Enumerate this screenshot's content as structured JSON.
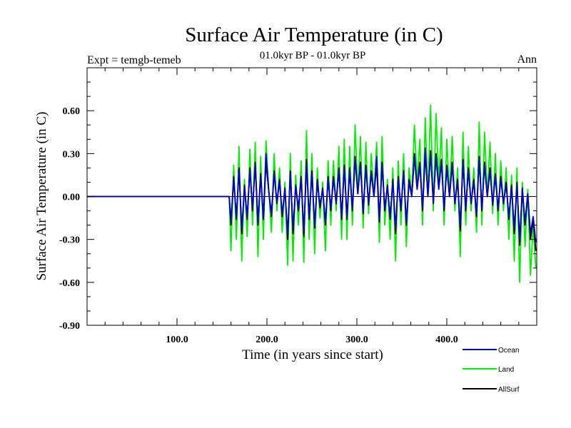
{
  "chart_data": {
    "type": "line",
    "title": "Surface Air Temperature (in C)",
    "subtitle": "01.0kyr BP - 01.0kyr BP",
    "left_label": "Expt = temgb-temeb",
    "right_label": "Ann",
    "xlabel": "Time (in years since start)",
    "ylabel": "Surface Air Temperature (in C)",
    "xlim": [
      0,
      500
    ],
    "ylim": [
      -0.9,
      0.9
    ],
    "xticks": [
      100,
      200,
      300,
      400
    ],
    "xtick_labels": [
      "100.0",
      "200.0",
      "300.0",
      "400.0"
    ],
    "yticks": [
      -0.9,
      -0.6,
      -0.3,
      0.0,
      0.3,
      0.6
    ],
    "ytick_labels": [
      "-0.90",
      "-0.60",
      "-0.30",
      "0.00",
      "0.30",
      "0.60"
    ],
    "zero_line": true,
    "legend_position": "bottom-right",
    "series": [
      {
        "name": "Land",
        "color": "#00ee00",
        "x": [
          0,
          158,
          160,
          163,
          166,
          169,
          172,
          175,
          178,
          181,
          184,
          187,
          190,
          193,
          196,
          199,
          202,
          205,
          208,
          211,
          214,
          217,
          220,
          223,
          226,
          229,
          232,
          235,
          238,
          241,
          244,
          247,
          250,
          253,
          256,
          259,
          262,
          265,
          268,
          271,
          274,
          277,
          280,
          283,
          286,
          289,
          292,
          295,
          298,
          301,
          304,
          307,
          310,
          313,
          316,
          319,
          322,
          325,
          328,
          331,
          334,
          337,
          340,
          343,
          346,
          349,
          352,
          355,
          358,
          361,
          364,
          367,
          370,
          373,
          376,
          379,
          382,
          385,
          388,
          391,
          394,
          397,
          400,
          403,
          406,
          409,
          412,
          415,
          418,
          421,
          424,
          427,
          430,
          433,
          436,
          439,
          442,
          445,
          448,
          451,
          454,
          457,
          460,
          463,
          466,
          469,
          472,
          475,
          478,
          481,
          484,
          487,
          490,
          493,
          496,
          499
        ],
        "values": [
          0,
          0,
          -0.38,
          0.22,
          -0.3,
          0.35,
          -0.45,
          0.12,
          -0.28,
          0.33,
          -0.2,
          0.38,
          -0.42,
          0.28,
          -0.3,
          0.39,
          0.05,
          -0.25,
          0.3,
          -0.1,
          0.2,
          -0.25,
          0.1,
          -0.48,
          0.3,
          -0.45,
          0.15,
          -0.2,
          0.25,
          -0.46,
          0.46,
          -0.3,
          0.3,
          -0.4,
          0.2,
          -0.15,
          0.1,
          -0.38,
          0.25,
          -0.2,
          0.25,
          -0.1,
          0.35,
          -0.3,
          0.4,
          -0.3,
          0.35,
          -0.2,
          0.5,
          0.02,
          0.42,
          -0.22,
          0.38,
          -0.12,
          0.3,
          0.0,
          0.38,
          -0.32,
          0.42,
          -0.2,
          0.12,
          -0.3,
          0.2,
          -0.45,
          0.25,
          -0.2,
          0.3,
          -0.35,
          0.2,
          0.0,
          0.5,
          0.1,
          0.4,
          -0.2,
          0.55,
          0.0,
          0.64,
          -0.1,
          0.58,
          0.1,
          0.48,
          -0.2,
          0.4,
          0.0,
          0.42,
          -0.1,
          0.2,
          -0.42,
          0.45,
          -0.2,
          0.35,
          -0.1,
          0.2,
          -0.25,
          0.52,
          -0.2,
          0.45,
          0.0,
          0.38,
          -0.12,
          0.3,
          -0.2,
          0.25,
          -0.1,
          0.2,
          -0.3,
          0.15,
          -0.45,
          0.2,
          -0.6,
          0.1,
          -0.35,
          0.05,
          -0.55,
          -0.2,
          -0.5
        ]
      },
      {
        "name": "AllSurf",
        "color": "#000000",
        "x": [
          0,
          158,
          160,
          163,
          166,
          169,
          172,
          175,
          178,
          181,
          184,
          187,
          190,
          193,
          196,
          199,
          202,
          205,
          208,
          211,
          214,
          217,
          220,
          223,
          226,
          229,
          232,
          235,
          238,
          241,
          244,
          247,
          250,
          253,
          256,
          259,
          262,
          265,
          268,
          271,
          274,
          277,
          280,
          283,
          286,
          289,
          292,
          295,
          298,
          301,
          304,
          307,
          310,
          313,
          316,
          319,
          322,
          325,
          328,
          331,
          334,
          337,
          340,
          343,
          346,
          349,
          352,
          355,
          358,
          361,
          364,
          367,
          370,
          373,
          376,
          379,
          382,
          385,
          388,
          391,
          394,
          397,
          400,
          403,
          406,
          409,
          412,
          415,
          418,
          421,
          424,
          427,
          430,
          433,
          436,
          439,
          442,
          445,
          448,
          451,
          454,
          457,
          460,
          463,
          466,
          469,
          472,
          475,
          478,
          481,
          484,
          487,
          490,
          493,
          496,
          499
        ],
        "values": [
          0,
          0,
          -0.2,
          0.14,
          -0.16,
          0.2,
          -0.26,
          0.08,
          -0.16,
          0.2,
          -0.1,
          0.24,
          -0.2,
          0.16,
          -0.16,
          0.24,
          0.04,
          -0.14,
          0.18,
          -0.05,
          0.12,
          -0.14,
          0.06,
          -0.3,
          0.18,
          -0.26,
          0.08,
          -0.1,
          0.14,
          -0.28,
          0.26,
          -0.16,
          0.18,
          -0.22,
          0.12,
          -0.08,
          0.06,
          -0.2,
          0.14,
          -0.1,
          0.14,
          -0.05,
          0.2,
          -0.16,
          0.22,
          -0.16,
          0.2,
          -0.1,
          0.28,
          0.02,
          0.24,
          -0.12,
          0.22,
          -0.06,
          0.18,
          0.0,
          0.22,
          -0.18,
          0.24,
          -0.1,
          0.08,
          -0.16,
          0.12,
          -0.26,
          0.14,
          -0.1,
          0.18,
          -0.2,
          0.12,
          0.0,
          0.3,
          0.06,
          0.24,
          -0.1,
          0.3,
          0.0,
          0.32,
          -0.05,
          0.3,
          0.06,
          0.26,
          -0.1,
          0.22,
          0.0,
          0.24,
          -0.05,
          0.12,
          -0.24,
          0.26,
          -0.1,
          0.2,
          -0.05,
          0.12,
          -0.14,
          0.28,
          -0.1,
          0.24,
          0.0,
          0.2,
          -0.06,
          0.16,
          -0.1,
          0.14,
          -0.05,
          0.1,
          -0.16,
          0.08,
          -0.26,
          0.1,
          -0.34,
          0.06,
          -0.2,
          0.02,
          -0.3,
          -0.16,
          -0.38
        ]
      },
      {
        "name": "Ocean",
        "color": "#0000cc",
        "x": [
          0,
          158,
          160,
          163,
          166,
          169,
          172,
          175,
          178,
          181,
          184,
          187,
          190,
          193,
          196,
          199,
          202,
          205,
          208,
          211,
          214,
          217,
          220,
          223,
          226,
          229,
          232,
          235,
          238,
          241,
          244,
          247,
          250,
          253,
          256,
          259,
          262,
          265,
          268,
          271,
          274,
          277,
          280,
          283,
          286,
          289,
          292,
          295,
          298,
          301,
          304,
          307,
          310,
          313,
          316,
          319,
          322,
          325,
          328,
          331,
          334,
          337,
          340,
          343,
          346,
          349,
          352,
          355,
          358,
          361,
          364,
          367,
          370,
          373,
          376,
          379,
          382,
          385,
          388,
          391,
          394,
          397,
          400,
          403,
          406,
          409,
          412,
          415,
          418,
          421,
          424,
          427,
          430,
          433,
          436,
          439,
          442,
          445,
          448,
          451,
          454,
          457,
          460,
          463,
          466,
          469,
          472,
          475,
          478,
          481,
          484,
          487,
          490,
          493,
          496,
          499
        ],
        "values": [
          0,
          0,
          -0.17,
          0.12,
          -0.14,
          0.18,
          -0.22,
          0.06,
          -0.14,
          0.18,
          -0.08,
          0.22,
          -0.18,
          0.14,
          -0.14,
          0.3,
          0.04,
          -0.12,
          0.16,
          -0.04,
          0.1,
          -0.12,
          0.05,
          -0.26,
          0.16,
          -0.22,
          0.07,
          -0.08,
          0.12,
          -0.24,
          0.22,
          -0.14,
          0.16,
          -0.2,
          0.1,
          -0.06,
          0.05,
          -0.18,
          0.12,
          -0.08,
          0.12,
          -0.04,
          0.18,
          -0.14,
          0.2,
          -0.14,
          0.18,
          -0.08,
          0.26,
          0.02,
          0.22,
          -0.1,
          0.2,
          -0.05,
          0.16,
          0.0,
          0.28,
          -0.16,
          0.22,
          -0.08,
          0.07,
          -0.14,
          0.1,
          -0.22,
          0.12,
          -0.08,
          0.16,
          -0.18,
          0.1,
          0.0,
          0.28,
          0.05,
          0.22,
          -0.08,
          0.34,
          0.0,
          0.3,
          -0.04,
          0.28,
          0.05,
          0.24,
          -0.08,
          0.2,
          0.0,
          0.22,
          -0.04,
          0.1,
          -0.2,
          0.24,
          -0.08,
          0.18,
          -0.04,
          0.1,
          -0.12,
          0.26,
          -0.08,
          0.22,
          0.0,
          0.18,
          -0.05,
          0.14,
          -0.08,
          0.12,
          -0.04,
          0.08,
          -0.14,
          0.06,
          -0.22,
          0.08,
          -0.3,
          0.05,
          -0.18,
          0.02,
          -0.26,
          -0.14,
          -0.32
        ]
      }
    ]
  }
}
